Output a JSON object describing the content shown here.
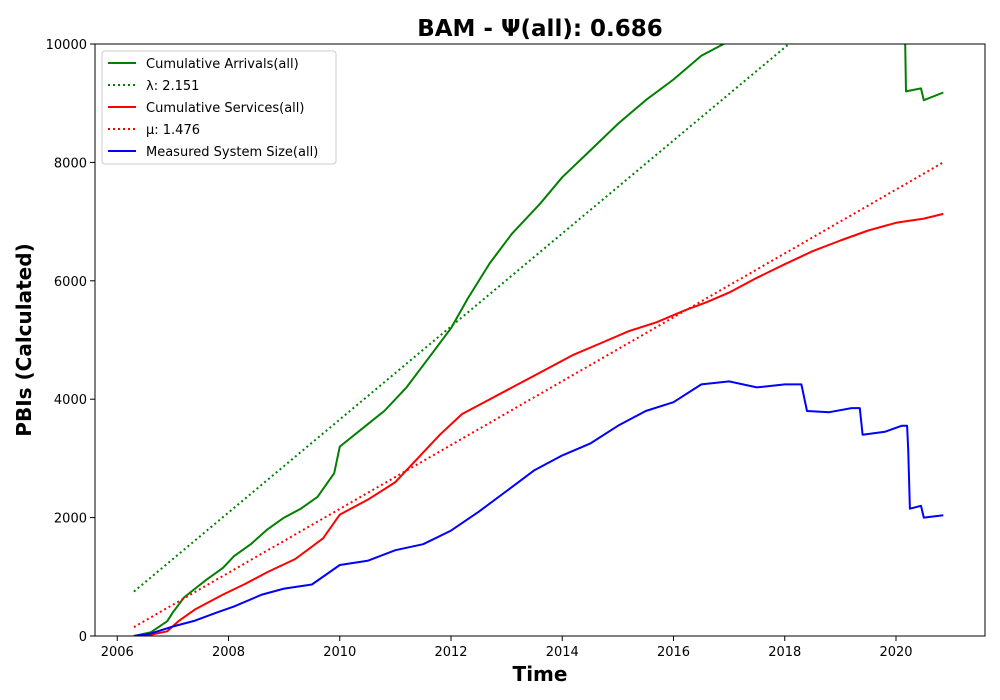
{
  "chart_data": {
    "type": "line",
    "title": "BAM -  Ψ(all): 0.686",
    "xlabel": "Time",
    "ylabel": "PBIs (Calculated)",
    "xlim": [
      2005.6,
      2021.6
    ],
    "ylim": [
      0,
      10000
    ],
    "xticks": [
      2006,
      2008,
      2010,
      2012,
      2014,
      2016,
      2018,
      2020
    ],
    "yticks": [
      0,
      2000,
      4000,
      6000,
      8000,
      10000
    ],
    "grid": false,
    "legend_position": "upper-left",
    "series": [
      {
        "name": "Cumulative Arrivals(all)",
        "color": "#008000",
        "style": "solid",
        "points": [
          [
            2006.3,
            0
          ],
          [
            2006.6,
            60
          ],
          [
            2006.9,
            250
          ],
          [
            2007.0,
            400
          ],
          [
            2007.2,
            650
          ],
          [
            2007.4,
            800
          ],
          [
            2007.6,
            950
          ],
          [
            2007.9,
            1150
          ],
          [
            2008.1,
            1350
          ],
          [
            2008.4,
            1550
          ],
          [
            2008.7,
            1800
          ],
          [
            2009.0,
            2000
          ],
          [
            2009.3,
            2150
          ],
          [
            2009.6,
            2350
          ],
          [
            2009.9,
            2750
          ],
          [
            2010.0,
            3200
          ],
          [
            2010.4,
            3500
          ],
          [
            2010.8,
            3800
          ],
          [
            2011.2,
            4200
          ],
          [
            2011.6,
            4700
          ],
          [
            2012.0,
            5200
          ],
          [
            2012.3,
            5700
          ],
          [
            2012.7,
            6300
          ],
          [
            2013.1,
            6800
          ],
          [
            2013.6,
            7300
          ],
          [
            2014.0,
            7750
          ],
          [
            2014.5,
            8200
          ],
          [
            2015.0,
            8650
          ],
          [
            2015.5,
            9050
          ],
          [
            2016.0,
            9400
          ],
          [
            2016.5,
            9800
          ],
          [
            2016.9,
            10000
          ],
          [
            2017.3,
            10150
          ],
          [
            2018.0,
            10400
          ],
          [
            2018.8,
            10600
          ],
          [
            2019.5,
            10750
          ],
          [
            2020.1,
            10850
          ],
          [
            2020.15,
            10900
          ],
          [
            2020.18,
            9200
          ],
          [
            2020.45,
            9250
          ],
          [
            2020.5,
            9050
          ],
          [
            2020.85,
            9180
          ]
        ]
      },
      {
        "name": "λ: 2.151",
        "color": "#008000",
        "style": "dotted",
        "points": [
          [
            2006.3,
            750
          ],
          [
            2020.85,
            12180
          ]
        ]
      },
      {
        "name": "Cumulative Services(all)",
        "color": "#ff0000",
        "style": "solid",
        "points": [
          [
            2006.3,
            0
          ],
          [
            2006.6,
            20
          ],
          [
            2006.9,
            80
          ],
          [
            2007.1,
            250
          ],
          [
            2007.4,
            450
          ],
          [
            2007.9,
            700
          ],
          [
            2008.3,
            880
          ],
          [
            2008.7,
            1080
          ],
          [
            2009.2,
            1300
          ],
          [
            2009.7,
            1650
          ],
          [
            2010.0,
            2050
          ],
          [
            2010.5,
            2300
          ],
          [
            2011.0,
            2600
          ],
          [
            2011.4,
            3000
          ],
          [
            2011.8,
            3400
          ],
          [
            2012.2,
            3750
          ],
          [
            2012.7,
            4000
          ],
          [
            2013.2,
            4250
          ],
          [
            2013.7,
            4500
          ],
          [
            2014.2,
            4750
          ],
          [
            2014.7,
            4950
          ],
          [
            2015.2,
            5150
          ],
          [
            2015.7,
            5300
          ],
          [
            2016.2,
            5500
          ],
          [
            2016.6,
            5640
          ],
          [
            2017.0,
            5800
          ],
          [
            2017.5,
            6050
          ],
          [
            2018.0,
            6280
          ],
          [
            2018.5,
            6500
          ],
          [
            2019.0,
            6680
          ],
          [
            2019.5,
            6850
          ],
          [
            2020.0,
            6980
          ],
          [
            2020.5,
            7050
          ],
          [
            2020.85,
            7130
          ]
        ]
      },
      {
        "name": "μ: 1.476",
        "color": "#ff0000",
        "style": "dotted",
        "points": [
          [
            2006.3,
            150
          ],
          [
            2020.85,
            8000
          ]
        ]
      },
      {
        "name": "Measured System Size(all)",
        "color": "#0000ff",
        "style": "solid",
        "points": [
          [
            2006.3,
            0
          ],
          [
            2006.6,
            40
          ],
          [
            2007.0,
            160
          ],
          [
            2007.4,
            260
          ],
          [
            2007.8,
            400
          ],
          [
            2008.1,
            500
          ],
          [
            2008.6,
            700
          ],
          [
            2009.0,
            800
          ],
          [
            2009.5,
            870
          ],
          [
            2010.0,
            1200
          ],
          [
            2010.5,
            1270
          ],
          [
            2011.0,
            1450
          ],
          [
            2011.5,
            1550
          ],
          [
            2012.0,
            1780
          ],
          [
            2012.5,
            2100
          ],
          [
            2013.0,
            2450
          ],
          [
            2013.5,
            2800
          ],
          [
            2014.0,
            3050
          ],
          [
            2014.5,
            3250
          ],
          [
            2015.0,
            3550
          ],
          [
            2015.5,
            3800
          ],
          [
            2016.0,
            3950
          ],
          [
            2016.5,
            4250
          ],
          [
            2017.0,
            4300
          ],
          [
            2017.5,
            4200
          ],
          [
            2018.0,
            4250
          ],
          [
            2018.3,
            4250
          ],
          [
            2018.4,
            3800
          ],
          [
            2018.8,
            3780
          ],
          [
            2019.2,
            3850
          ],
          [
            2019.35,
            3850
          ],
          [
            2019.4,
            3400
          ],
          [
            2019.8,
            3450
          ],
          [
            2020.1,
            3550
          ],
          [
            2020.2,
            3550
          ],
          [
            2020.22,
            3150
          ],
          [
            2020.25,
            2150
          ],
          [
            2020.45,
            2200
          ],
          [
            2020.5,
            2000
          ],
          [
            2020.85,
            2040
          ]
        ]
      }
    ]
  }
}
